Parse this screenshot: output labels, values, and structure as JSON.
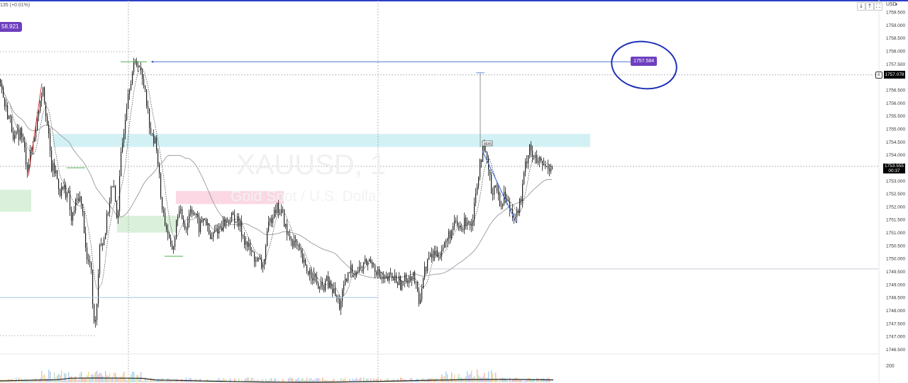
{
  "header": {
    "change_text": "135 (+0.01%)",
    "currency": "USD",
    "currency_arrow": "▾",
    "buttons": [
      "↓",
      "↑",
      "⛶"
    ]
  },
  "watermark": {
    "symbol": "XAUUSD, 1",
    "description": "Gold Spot / U.S. Dollar"
  },
  "labels": {
    "left_badge": "58.921",
    "price_tag": "1757.584",
    "line_price": "1757.078",
    "current_price": "1753.555",
    "countdown": "00:37",
    "measure_label": "8645",
    "volume_tick": "200",
    "line_price_icon": "≡"
  },
  "colors": {
    "candle": "#1a1a1a",
    "drawn_line": "#4a74d8",
    "ma_fast": "#333333",
    "ma_slow": "#999999",
    "zone_cyan": "#cdeff4",
    "zone_pink": "#fbd4e0",
    "zone_green": "#d6eed6",
    "badge_purple": "#6e3fbf",
    "ellipse": "#1d2fb8"
  },
  "chart_data": {
    "type": "candlestick",
    "symbol": "XAUUSD",
    "timeframe": "1",
    "y_axis": {
      "ticks": [
        "1759.500",
        "1759.000",
        "1758.500",
        "1758.000",
        "1757.500",
        "1757.000",
        "1756.500",
        "1756.000",
        "1755.500",
        "1755.000",
        "1754.500",
        "1754.000",
        "1753.500",
        "1753.000",
        "1752.500",
        "1752.000",
        "1751.500",
        "1751.000",
        "1750.500",
        "1750.000",
        "1749.500",
        "1749.000",
        "1748.500",
        "1748.000",
        "1747.500",
        "1747.000",
        "1746.500"
      ],
      "range": [
        1746.5,
        1759.5
      ]
    },
    "price_path": [
      [
        0,
        1756.9
      ],
      [
        6,
        1755.9
      ],
      [
        14,
        1755.3
      ],
      [
        20,
        1754.6
      ],
      [
        28,
        1754.9
      ],
      [
        33,
        1754.3
      ],
      [
        38,
        1753.5
      ],
      [
        44,
        1754.2
      ],
      [
        52,
        1755.4
      ],
      [
        56,
        1756.2
      ],
      [
        60,
        1756.7
      ],
      [
        64,
        1755.7
      ],
      [
        68,
        1754.6
      ],
      [
        72,
        1753.5
      ],
      [
        78,
        1753.3
      ],
      [
        84,
        1752.6
      ],
      [
        90,
        1752.7
      ],
      [
        96,
        1752.4
      ],
      [
        100,
        1751.4
      ],
      [
        105,
        1752.0
      ],
      [
        111,
        1752.5
      ],
      [
        117,
        1751.5
      ],
      [
        122,
        1749.9
      ],
      [
        127,
        1749.8
      ],
      [
        132,
        1747.4
      ],
      [
        136,
        1748.3
      ],
      [
        140,
        1750.7
      ],
      [
        145,
        1750.6
      ],
      [
        150,
        1751.5
      ],
      [
        156,
        1752.7
      ],
      [
        160,
        1752.6
      ],
      [
        165,
        1751.5
      ],
      [
        170,
        1753.9
      ],
      [
        175,
        1755.3
      ],
      [
        180,
        1756.5
      ],
      [
        185,
        1757.1
      ],
      [
        190,
        1757.5
      ],
      [
        195,
        1757.6
      ],
      [
        199,
        1756.9
      ],
      [
        204,
        1756.6
      ],
      [
        209,
        1755.4
      ],
      [
        214,
        1754.6
      ],
      [
        220,
        1754.4
      ],
      [
        226,
        1752.4
      ],
      [
        231,
        1751.5
      ],
      [
        236,
        1751.0
      ],
      [
        240,
        1750.3
      ],
      [
        245,
        1750.6
      ],
      [
        250,
        1751.8
      ],
      [
        256,
        1751.6
      ],
      [
        262,
        1751.2
      ],
      [
        268,
        1752.0
      ],
      [
        274,
        1751.7
      ],
      [
        280,
        1751.2
      ],
      [
        288,
        1751.6
      ],
      [
        296,
        1750.7
      ],
      [
        304,
        1751.1
      ],
      [
        312,
        1751.3
      ],
      [
        320,
        1751.5
      ],
      [
        330,
        1751.6
      ],
      [
        338,
        1751.2
      ],
      [
        346,
        1750.6
      ],
      [
        354,
        1750.2
      ],
      [
        362,
        1749.9
      ],
      [
        370,
        1749.7
      ],
      [
        378,
        1751.2
      ],
      [
        386,
        1752.0
      ],
      [
        392,
        1751.9
      ],
      [
        398,
        1751.7
      ],
      [
        404,
        1750.9
      ],
      [
        412,
        1750.7
      ],
      [
        420,
        1750.3
      ],
      [
        430,
        1749.6
      ],
      [
        440,
        1749.4
      ],
      [
        450,
        1748.8
      ],
      [
        460,
        1749.1
      ],
      [
        470,
        1748.7
      ],
      [
        478,
        1748.2
      ],
      [
        486,
        1749.0
      ],
      [
        494,
        1749.6
      ],
      [
        502,
        1749.5
      ],
      [
        510,
        1749.7
      ],
      [
        518,
        1749.9
      ],
      [
        526,
        1749.8
      ],
      [
        534,
        1749.3
      ],
      [
        542,
        1749.1
      ],
      [
        550,
        1749.3
      ],
      [
        558,
        1749.2
      ],
      [
        566,
        1749.0
      ],
      [
        574,
        1749.3
      ],
      [
        582,
        1749.4
      ],
      [
        590,
        1748.3
      ],
      [
        596,
        1749.3
      ],
      [
        602,
        1749.9
      ],
      [
        610,
        1750.2
      ],
      [
        618,
        1750.2
      ],
      [
        626,
        1750.5
      ],
      [
        634,
        1751.0
      ],
      [
        642,
        1751.3
      ],
      [
        650,
        1751.1
      ],
      [
        658,
        1751.6
      ],
      [
        664,
        1751.3
      ],
      [
        670,
        1752.5
      ],
      [
        676,
        1753.8
      ],
      [
        680,
        1754.1
      ],
      [
        686,
        1753.8
      ],
      [
        692,
        1752.6
      ],
      [
        698,
        1752.9
      ],
      [
        704,
        1752.0
      ],
      [
        710,
        1752.5
      ],
      [
        716,
        1752.1
      ],
      [
        722,
        1751.8
      ],
      [
        728,
        1751.7
      ],
      [
        734,
        1752.3
      ],
      [
        740,
        1753.6
      ],
      [
        746,
        1754.4
      ],
      [
        752,
        1753.8
      ],
      [
        758,
        1753.7
      ],
      [
        764,
        1753.6
      ],
      [
        770,
        1753.5
      ],
      [
        776,
        1753.6
      ]
    ],
    "zones": [
      {
        "name": "cyan",
        "ymin": 1754.3,
        "ymax": 1754.8
      },
      {
        "name": "pink",
        "ymin": 1752.1,
        "ymax": 1752.6
      },
      {
        "name": "green_left",
        "ymin": 1751.8,
        "ymax": 1752.65
      },
      {
        "name": "green_mid",
        "ymin": 1751.0,
        "ymax": 1751.65
      }
    ],
    "levels": [
      1757.584,
      1757.078,
      1753.555,
      1749.6,
      1748.5
    ]
  }
}
